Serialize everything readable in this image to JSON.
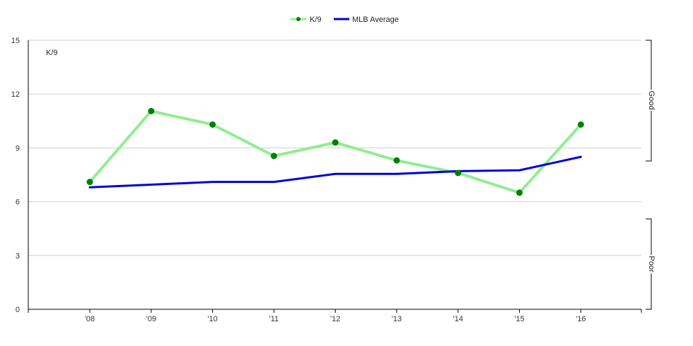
{
  "chart_data": {
    "type": "line",
    "categories": [
      "'08",
      "'09",
      "'10",
      "'11",
      "'12",
      "'13",
      "'14",
      "'15",
      "'16"
    ],
    "series": [
      {
        "name": "K/9",
        "values": [
          7.1,
          11.05,
          10.3,
          8.55,
          9.3,
          8.3,
          7.6,
          6.5,
          10.3
        ],
        "color": "#90ee90",
        "marker_color": "#008000"
      },
      {
        "name": "MLB Average",
        "values": [
          6.8,
          6.95,
          7.1,
          7.1,
          7.55,
          7.55,
          7.7,
          7.75,
          8.5
        ],
        "color": "#0000dd"
      }
    ],
    "ylabel": "K/9",
    "ylim": [
      0,
      15
    ],
    "yticks": [
      "0",
      "3",
      "6",
      "9",
      "12",
      "15"
    ],
    "grid": true,
    "legend_position": "top-center",
    "side_labels": {
      "upper": "Good",
      "lower": "Poor"
    }
  }
}
